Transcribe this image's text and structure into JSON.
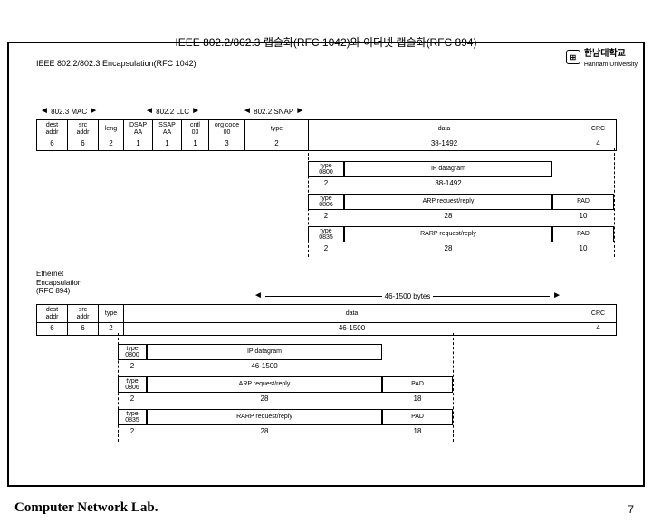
{
  "university": {
    "name_kr": "한남대학교",
    "name_en": "Hannam University"
  },
  "title": "IEEE 802.2/802.3 랩슐화(RFC 1042)와 이더넷 랩슐화(RFC 894)",
  "subtitle": "IEEE 802.2/802.3 Encapsulation(RFC 1042)",
  "sections": {
    "mac": "802.3 MAC",
    "llc": "802.2 LLC",
    "snap": "802.2 SNAP"
  },
  "rfc1042": {
    "fields": [
      "dest\naddr",
      "src\naddr",
      "leng",
      "DSAP\nAA",
      "SSAP\nAA",
      "cntl\n03",
      "org code\n00",
      "type",
      "data",
      "CRC"
    ],
    "widths": [
      "6",
      "6",
      "2",
      "1",
      "1",
      "1",
      "3",
      "2",
      "38-1492",
      "4"
    ]
  },
  "sub1042": [
    {
      "type_label": "type\n0800",
      "type_w": "2",
      "data": "IP datagram",
      "data_w": "38-1492",
      "pad": "",
      "pad_w": ""
    },
    {
      "type_label": "type\n0806",
      "type_w": "2",
      "data": "ARP request/reply",
      "data_w": "28",
      "pad": "PAD",
      "pad_w": "10"
    },
    {
      "type_label": "type\n0835",
      "type_w": "2",
      "data": "RARP request/reply",
      "data_w": "28",
      "pad": "PAD",
      "pad_w": "10"
    }
  ],
  "ethernet_label": "Ethernet\nEncapsulation\n(RFC 894)",
  "bytes46_1500": "46-1500 bytes",
  "rfc894": {
    "fields": [
      "dest\naddr",
      "src\naddr",
      "type",
      "data",
      "CRC"
    ],
    "widths": [
      "6",
      "6",
      "2",
      "46-1500",
      "4"
    ]
  },
  "sub894": [
    {
      "type_label": "type\n0800",
      "type_w": "2",
      "data": "IP datagram",
      "data_w": "46-1500",
      "pad": "",
      "pad_w": ""
    },
    {
      "type_label": "type\n0806",
      "type_w": "2",
      "data": "ARP request/reply",
      "data_w": "28",
      "pad": "PAD",
      "pad_w": "18"
    },
    {
      "type_label": "type\n0835",
      "type_w": "2",
      "data": "RARP request/reply",
      "data_w": "28",
      "pad": "PAD",
      "pad_w": "18"
    }
  ],
  "footer": "Computer Network Lab.",
  "pagenum": "7"
}
